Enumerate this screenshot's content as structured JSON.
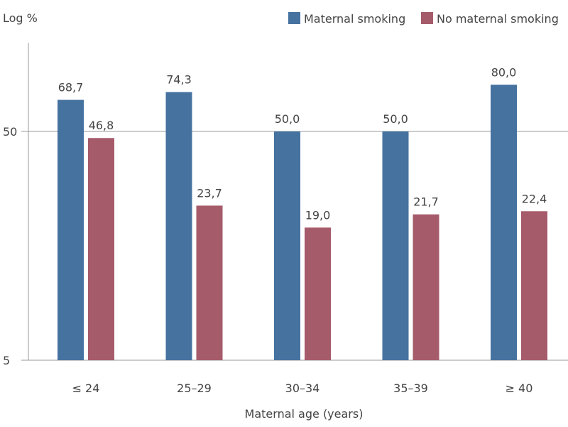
{
  "chart_data": {
    "type": "bar",
    "ylabel": "Log %",
    "xlabel": "Maternal age (years)",
    "yscale": "log",
    "ylim": [
      5,
      122
    ],
    "yticks": [
      5,
      50
    ],
    "ytick_labels": [
      "5",
      "50"
    ],
    "grid": "horizontal at ticks",
    "legend_position": "top-right",
    "categories": [
      "≤ 24",
      "25–29",
      "30–34",
      "35–39",
      "≥ 40"
    ],
    "series": [
      {
        "name": "Maternal smoking",
        "color": "#4672a0",
        "values": [
          68.7,
          74.3,
          50.0,
          50.0,
          80.0
        ],
        "labels": [
          "68,7",
          "74,3",
          "50,0",
          "50,0",
          "80,0"
        ]
      },
      {
        "name": "No maternal smoking",
        "color": "#a65b6a",
        "values": [
          46.8,
          23.7,
          19.0,
          21.7,
          22.4
        ],
        "labels": [
          "46,8",
          "23,7",
          "19,0",
          "21,7",
          "22,4"
        ]
      }
    ]
  }
}
